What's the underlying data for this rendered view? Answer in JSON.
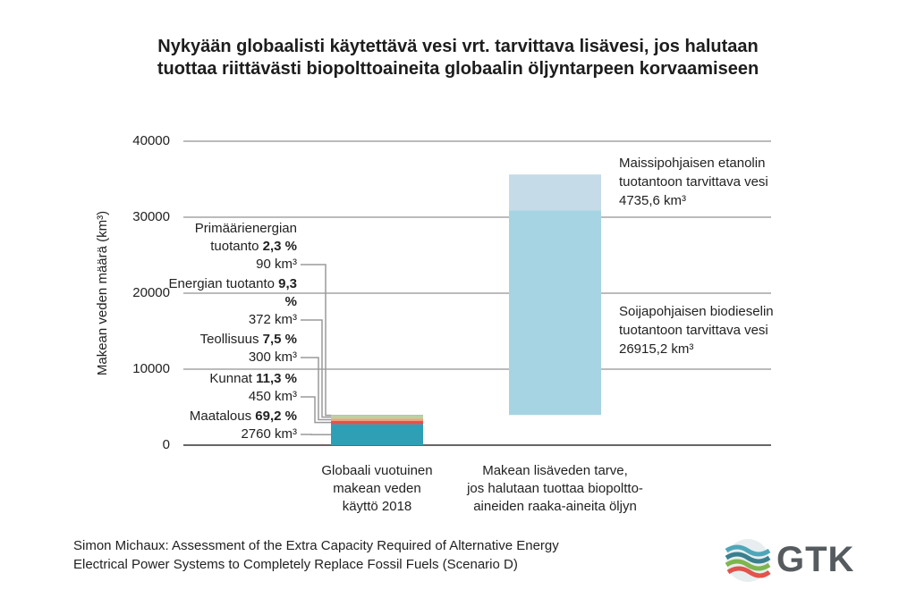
{
  "chart_data": {
    "type": "waterfall",
    "title": "Nykyään globaalisti käytettävä vesi vrt. tarvittava lisävesi, jos halutaan\ntuottaa riittävästi biopolttoaineita globaalin öljyntarpeen korvaamiseen",
    "ylabel": "Makean veden määrä (km³)",
    "categories": [
      "Globaali vuotuinen\nmakean veden\nkäyttö 2018",
      "Makean lisäveden tarve,\njos halutaan tuottaa biopoltto-\naineiden raaka-aineita öljyn"
    ],
    "series": [
      {
        "name": "Maatalous",
        "color": "#2f9fb6",
        "values": [
          2760,
          null
        ],
        "value_labels": [
          "2760 km³",
          null
        ],
        "share": 69.2,
        "share_label": "69,2 %"
      },
      {
        "name": "Kunnat",
        "color": "#e2534b",
        "values": [
          450,
          null
        ],
        "value_labels": [
          "450 km³",
          null
        ],
        "share": 11.3,
        "share_label": "11,3 %"
      },
      {
        "name": "Teollisuus",
        "color": "#eda47a",
        "values": [
          300,
          null
        ],
        "value_labels": [
          "300 km³",
          null
        ],
        "share": 7.5,
        "share_label": "7,5 %"
      },
      {
        "name": "Energian tuotanto",
        "color": "#b9d3a6",
        "values": [
          372,
          null
        ],
        "value_labels": [
          "372 km³",
          null
        ],
        "share": 9.3,
        "share_label": "9,3 %"
      },
      {
        "name": "Primäärienergian tuotanto",
        "color": "#a9a9a9",
        "values": [
          90,
          null
        ],
        "value_labels": [
          "90 km³",
          null
        ],
        "share": 2.3,
        "share_label": "2,3 %"
      },
      {
        "name": "Soijapohjaisen biodieselin tuotantoon tarvittava vesi",
        "color": "#a6d4e2",
        "values": [
          null,
          26915.2
        ],
        "value_labels": [
          null,
          "26915,2 km³"
        ]
      },
      {
        "name": "Maissipohjaisen etanolin tuotantoon tarvittava vesi",
        "color": "#c5dce8",
        "values": [
          null,
          4735.6
        ],
        "value_labels": [
          null,
          "4735,6 km³"
        ]
      }
    ],
    "ylim": [
      0,
      40000
    ],
    "yticks": [
      0,
      10000,
      20000,
      30000,
      40000
    ],
    "grid": true,
    "source": "Simon Michaux: Assessment of the Extra Capacity Required of Alternative Energy\nElectrical Power Systems to Completely Replace Fossil Fuels (Scenario D)",
    "logo": "GTK"
  }
}
